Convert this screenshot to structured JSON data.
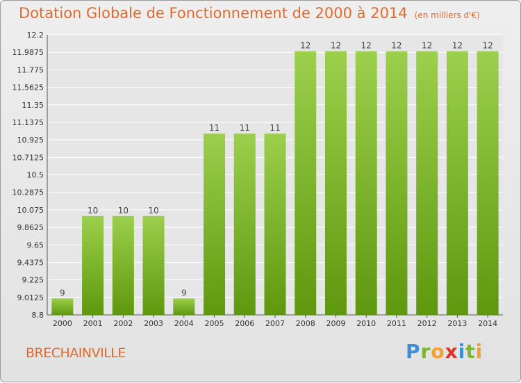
{
  "header": {
    "title": "Dotation Globale de Fonctionnement de 2000 à 2014",
    "unit": "(en milliers d'€)"
  },
  "footer": {
    "city": "BRECHAINVILLE",
    "brand": [
      "P",
      "r",
      "o",
      "x",
      "i",
      "t",
      "i"
    ]
  },
  "chart_data": {
    "type": "bar",
    "title": "Dotation Globale de Fonctionnement de 2000 à 2014",
    "categories": [
      "2000",
      "2001",
      "2002",
      "2003",
      "2004",
      "2005",
      "2006",
      "2007",
      "2008",
      "2009",
      "2010",
      "2011",
      "2012",
      "2013",
      "2014"
    ],
    "values": [
      9,
      10,
      10,
      10,
      9,
      11,
      11,
      11,
      12,
      12,
      12,
      12,
      12,
      12,
      12
    ],
    "bar_tops": [
      9.0,
      10.0,
      10.0,
      10.0,
      9.0,
      11.0,
      11.0,
      11.0,
      12.0,
      12.0,
      12.0,
      12.0,
      12.0,
      12.0,
      12.0
    ],
    "data_labels": [
      "9",
      "10",
      "10",
      "10",
      "9",
      "11",
      "11",
      "11",
      "12",
      "12",
      "12",
      "12",
      "12",
      "12",
      "12"
    ],
    "yticks": [
      "8.8",
      "9.0125",
      "9.225",
      "9.4375",
      "9.65",
      "9.8625",
      "10.075",
      "10.2875",
      "10.5",
      "10.7125",
      "10.925",
      "11.1375",
      "11.35",
      "11.5625",
      "11.775",
      "11.9875",
      "12.2"
    ],
    "ylim": [
      8.8,
      12.2
    ],
    "xlabel": "",
    "ylabel": "",
    "grid": true,
    "colors": {
      "bar_top": "#9ccf4c",
      "bar_bottom": "#5e980f",
      "grid": "#ffffff",
      "title": "#e06a2c"
    }
  }
}
